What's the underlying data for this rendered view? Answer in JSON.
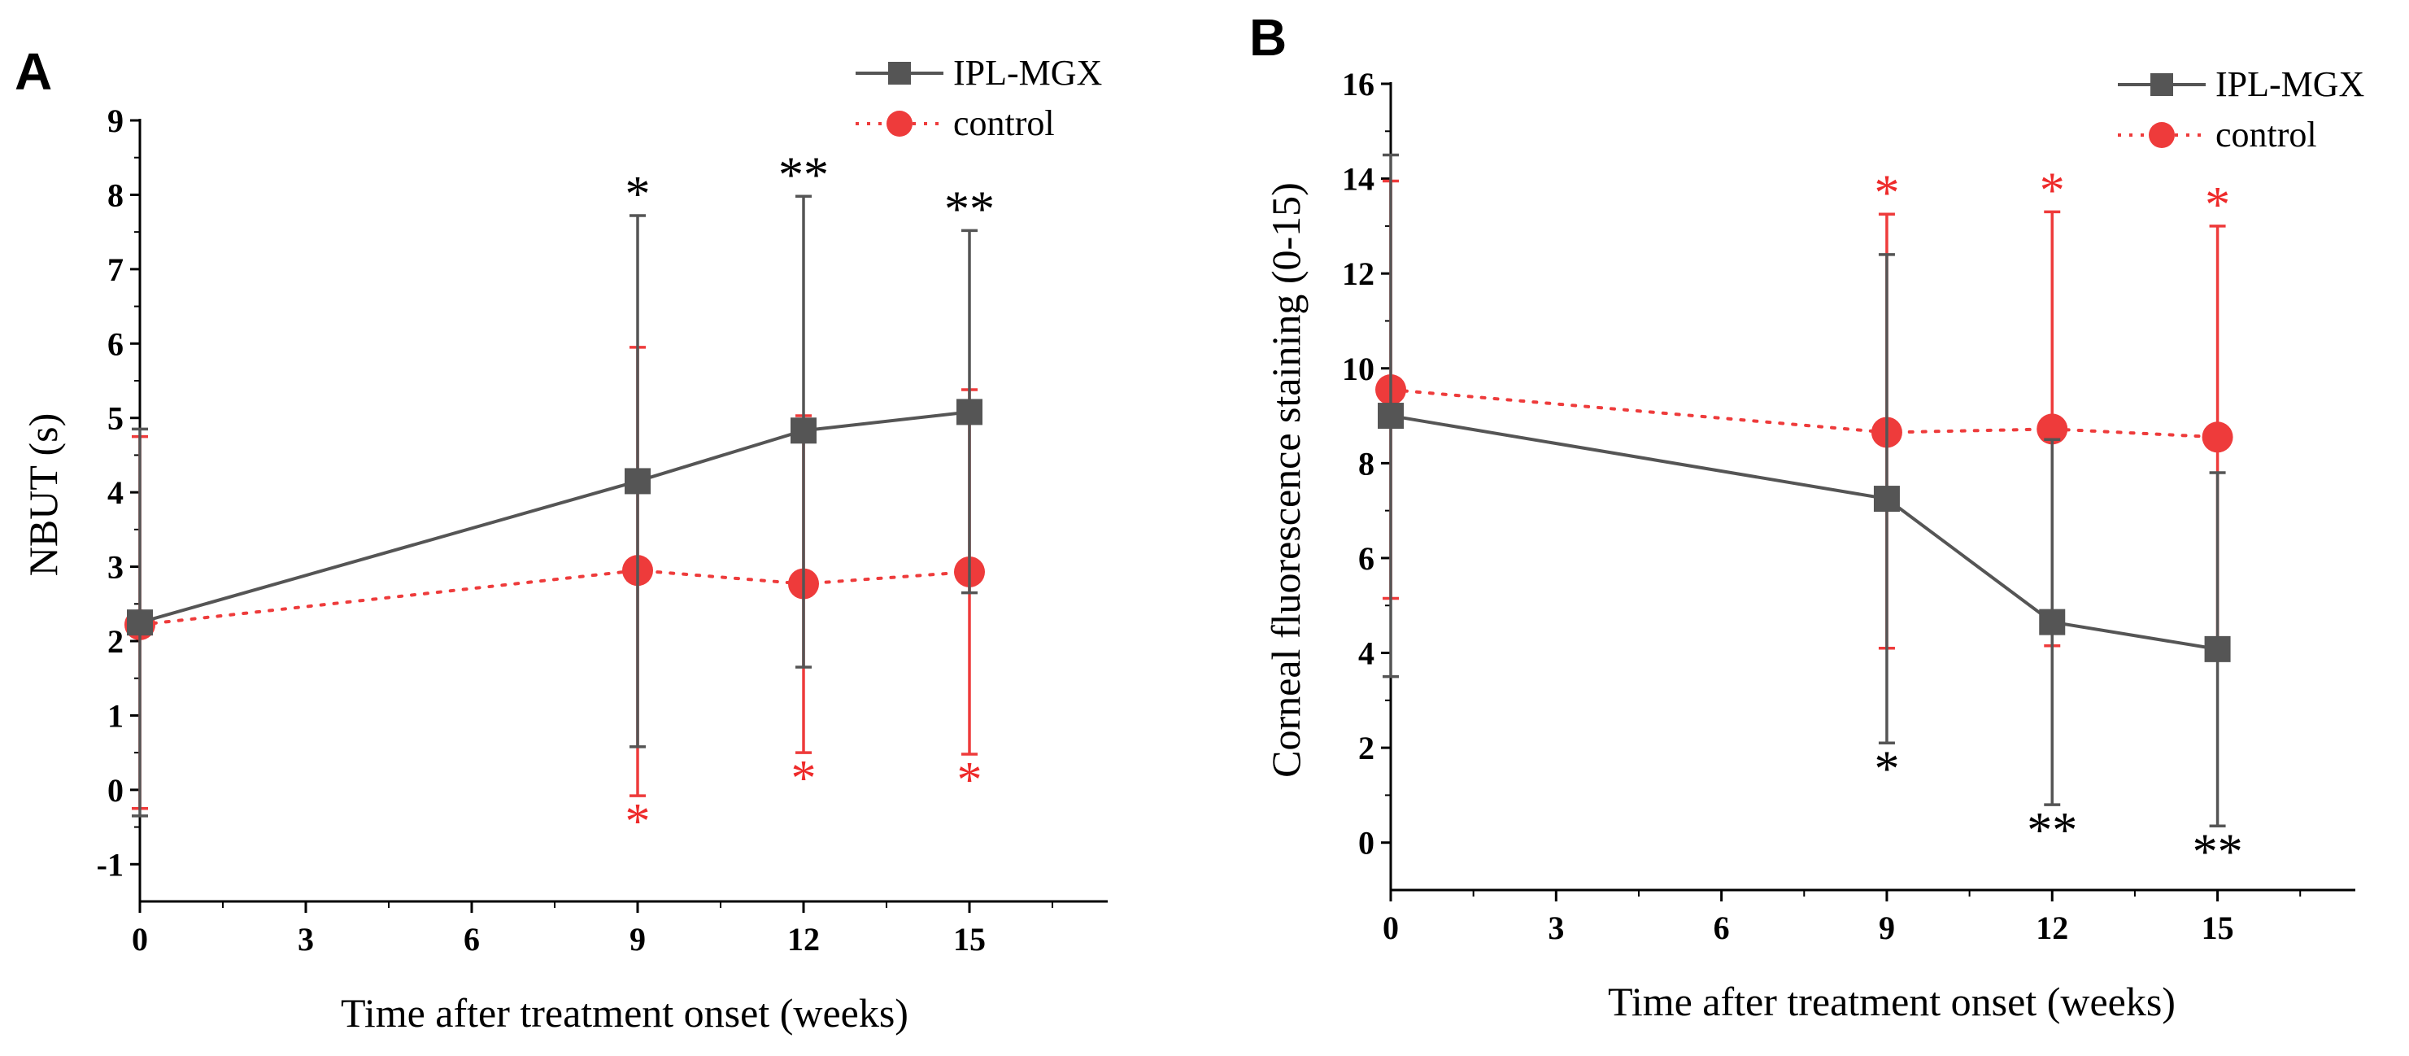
{
  "chart_data": [
    {
      "panel": "A",
      "type": "line",
      "xlabel": "Time after treatment onset (weeks)",
      "ylabel": "NBUT (s)",
      "xlim": [
        0,
        17.5
      ],
      "ylim": [
        -1.5,
        9
      ],
      "xticks": [
        0,
        3,
        6,
        9,
        12,
        15
      ],
      "xtick_labels": [
        "0",
        "3",
        "6",
        "9",
        "12",
        "15"
      ],
      "yticks": [
        -1,
        0,
        1,
        2,
        3,
        4,
        5,
        6,
        7,
        8,
        9
      ],
      "ytick_labels": [
        "-1",
        "0",
        "1",
        "2",
        "3",
        "4",
        "5",
        "6",
        "7",
        "8",
        "9"
      ],
      "legend_position": "top-right",
      "series": [
        {
          "name": "IPL-MGX",
          "color": "#555555",
          "marker": "square",
          "line": "solid",
          "x": [
            0,
            9,
            12,
            15
          ],
          "y": [
            2.25,
            4.15,
            4.83,
            5.08
          ],
          "err_low": [
            -0.35,
            0.58,
            1.65,
            2.65
          ],
          "err_high": [
            4.85,
            7.72,
            7.98,
            7.52
          ],
          "sig": [
            {
              "x": 9,
              "text": "*",
              "pos": "above"
            },
            {
              "x": 12,
              "text": "**",
              "pos": "above"
            },
            {
              "x": 15,
              "text": "**",
              "pos": "above"
            }
          ]
        },
        {
          "name": "control",
          "color": "#ee3b3b",
          "marker": "circle",
          "line": "dotted",
          "x": [
            0,
            9,
            12,
            15
          ],
          "y": [
            2.22,
            2.95,
            2.77,
            2.93
          ],
          "err_low": [
            -0.25,
            -0.08,
            0.5,
            0.48
          ],
          "err_high": [
            4.75,
            5.95,
            5.03,
            5.38
          ],
          "sig": [
            {
              "x": 9,
              "text": "*",
              "pos": "below"
            },
            {
              "x": 12,
              "text": "*",
              "pos": "below"
            },
            {
              "x": 15,
              "text": "*",
              "pos": "below"
            }
          ]
        }
      ]
    },
    {
      "panel": "B",
      "type": "line",
      "xlabel": "Time after treatment onset (weeks)",
      "ylabel": "Corneal fluorescence staining (0-15)",
      "xlim": [
        0,
        17.5
      ],
      "ylim": [
        -1,
        16
      ],
      "xticks": [
        0,
        3,
        6,
        9,
        12,
        15
      ],
      "xtick_labels": [
        "0",
        "3",
        "6",
        "9",
        "12",
        "15"
      ],
      "yticks": [
        0,
        2,
        4,
        6,
        8,
        10,
        12,
        14,
        16
      ],
      "ytick_labels": [
        "0",
        "2",
        "4",
        "6",
        "8",
        "10",
        "12",
        "14",
        "16"
      ],
      "legend_position": "top-right",
      "series": [
        {
          "name": "IPL-MGX",
          "color": "#555555",
          "marker": "square",
          "line": "solid",
          "x": [
            0,
            9,
            12,
            15
          ],
          "y": [
            9.0,
            7.25,
            4.65,
            4.08
          ],
          "err_low": [
            3.5,
            2.1,
            0.8,
            0.35
          ],
          "err_high": [
            14.5,
            12.4,
            8.5,
            7.8
          ],
          "sig": [
            {
              "x": 9,
              "text": "*",
              "pos": "below"
            },
            {
              "x": 12,
              "text": "**",
              "pos": "below"
            },
            {
              "x": 15,
              "text": "**",
              "pos": "below"
            }
          ]
        },
        {
          "name": "control",
          "color": "#ee3b3b",
          "marker": "circle",
          "line": "dotted",
          "x": [
            0,
            9,
            12,
            15
          ],
          "y": [
            9.55,
            8.65,
            8.72,
            8.55
          ],
          "err_low": [
            5.15,
            4.1,
            4.15,
            4.1
          ],
          "err_high": [
            13.95,
            13.25,
            13.3,
            13.0
          ],
          "sig": [
            {
              "x": 9,
              "text": "*",
              "pos": "above"
            },
            {
              "x": 12,
              "text": "*",
              "pos": "above"
            },
            {
              "x": 15,
              "text": "*",
              "pos": "above"
            }
          ]
        }
      ]
    }
  ]
}
